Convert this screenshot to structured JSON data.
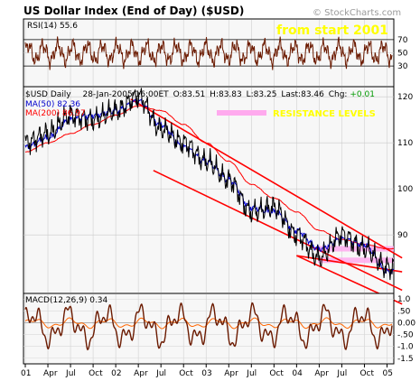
{
  "header": {
    "title": "US Dollar Index (End of Day) ($USD)",
    "watermark": "© StockCharts.com"
  },
  "chart_data": [
    {
      "type": "line",
      "name": "rsi_panel",
      "label": "RSI(14) 55.6",
      "annotation": "from start 2001",
      "ylim": [
        0,
        100
      ],
      "yticks": [
        30,
        50,
        70
      ],
      "reference_lines": [
        30,
        70
      ],
      "color": "#6b1a00"
    },
    {
      "type": "line",
      "name": "price_panel",
      "info": {
        "symbol": "$USD Daily",
        "date": "28-Jan-2005 16:00ET",
        "open": "O:83.51",
        "high": "H:83.83",
        "low": "L:83.25",
        "last": "Last:83.46",
        "chg_label": "Chg:",
        "chg_value": "+0.01"
      },
      "ma50_label": "MA(50) 82.36",
      "ma200_label": "MA(200) 86.97",
      "annotation": "RESISTANCE LEVELS",
      "ylim": [
        77.5,
        122
      ],
      "yticks": [
        90,
        100,
        110,
        120
      ],
      "x": [
        "2001-01",
        "2001-04",
        "2001-07",
        "2001-10",
        "2002-01",
        "2002-04",
        "2002-07",
        "2002-10",
        "2003-01",
        "2003-04",
        "2003-07",
        "2003-10",
        "2004-01",
        "2004-04",
        "2004-07",
        "2004-10",
        "2005-01"
      ],
      "series": [
        {
          "values": [
            110,
            112,
            116,
            115,
            117,
            120,
            113,
            110,
            106,
            102,
            95,
            96,
            90,
            85,
            90,
            87,
            83
          ],
          "color": "#000000"
        },
        {
          "values": [
            109,
            111,
            115,
            116,
            117,
            119,
            114,
            109,
            106,
            102,
            96,
            95,
            91,
            87,
            89,
            88,
            82
          ],
          "color": "#0000cc"
        },
        {
          "values": [
            108,
            110,
            112,
            114,
            116,
            118,
            117,
            114,
            110,
            106,
            101,
            98,
            95,
            91,
            89,
            88,
            87
          ],
          "color": "#ff0000"
        }
      ],
      "trendlines": [
        {
          "from": [
            "2002-03",
            119.5
          ],
          "to": [
            "2005-03",
            85
          ]
        },
        {
          "from": [
            "2002-06",
            104
          ],
          "to": [
            "2005-03",
            78
          ]
        },
        {
          "from": [
            "2004-01",
            85.5
          ],
          "to": [
            "2005-03",
            82
          ]
        },
        {
          "from": [
            "2004-01",
            85.5
          ],
          "to": [
            "2005-03",
            75
          ]
        }
      ],
      "resistance_levels": [
        87,
        84.5
      ]
    },
    {
      "type": "line",
      "name": "macd_panel",
      "label": "MACD(12,26,9) 0.34",
      "ylim": [
        -1.7,
        1.2
      ],
      "yticks": [
        1.0,
        0.5,
        0.0,
        -0.5,
        -1.0,
        -1.5
      ],
      "ytick_labels": [
        "1.0",
        ".50",
        "0.00",
        "-.50",
        "-1.0",
        "-1.5"
      ],
      "color": "#6b1a00"
    }
  ],
  "x_axis": {
    "labels": [
      "01",
      "Apr",
      "Jul",
      "Oct",
      "02",
      "Apr",
      "Jul",
      "Oct",
      "03",
      "Apr",
      "Jul",
      "Oct",
      "04",
      "Apr",
      "Jul",
      "Oct",
      "05"
    ]
  },
  "colors": {
    "panel_bg": "#f7f7f7",
    "grid": "#c8c8c8",
    "title_bar": "#ffffff",
    "ma50": "#0000cc",
    "ma200": "#ff0000",
    "trend": "#ff0000",
    "resistance": "#ffaaee",
    "annotation": "#ffff00",
    "oscillator": "#6b1a00",
    "signal": "#ff6600"
  }
}
